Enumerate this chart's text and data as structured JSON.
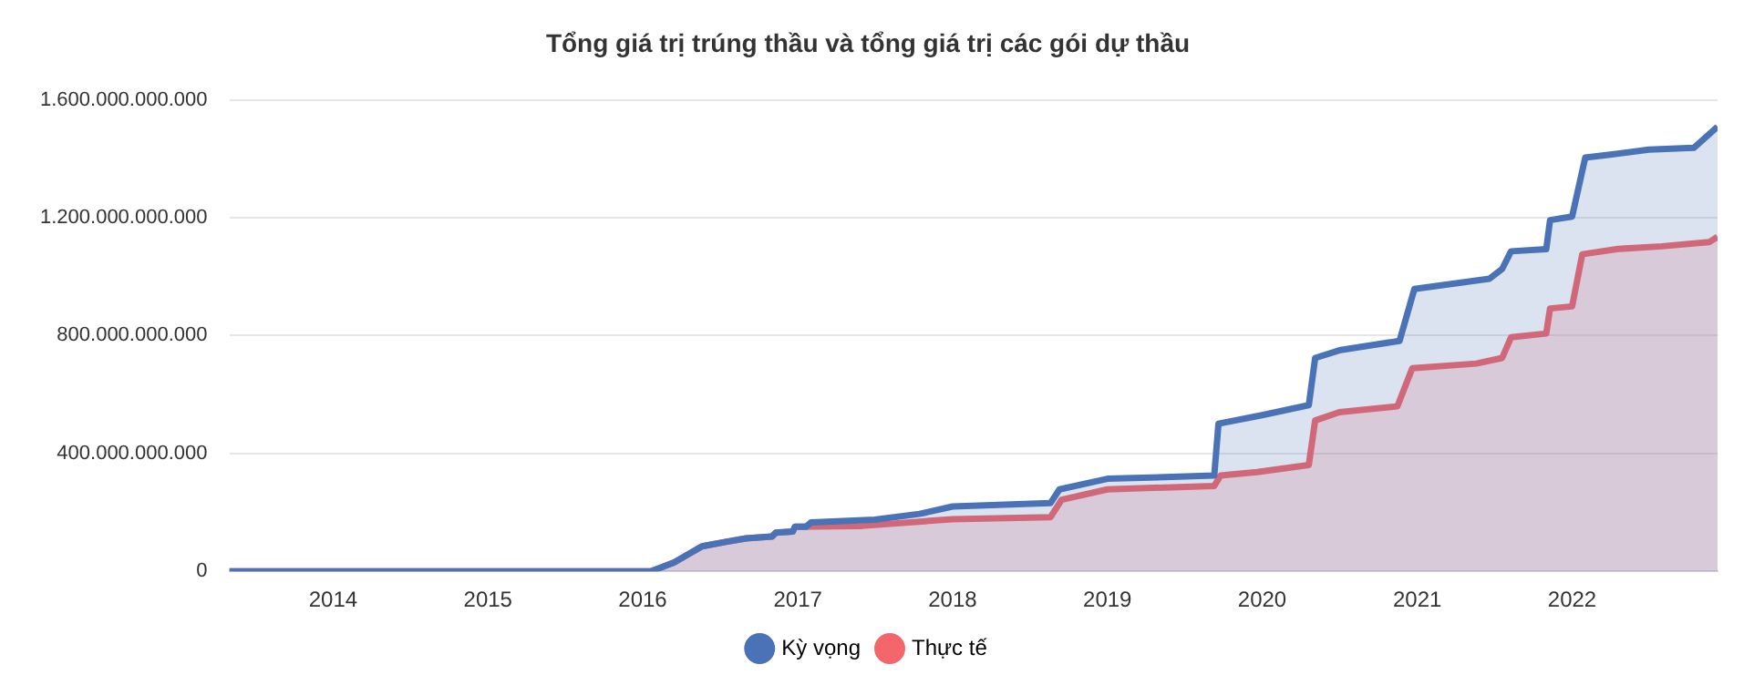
{
  "chart_data": {
    "type": "area",
    "title": "Tổng giá trị trúng thầu và tổng giá trị các gói dự thầu",
    "xlim": [
      "2013-05-01",
      "2022-12-10"
    ],
    "xticks": [
      "2014",
      "2015",
      "2016",
      "2017",
      "2018",
      "2019",
      "2020",
      "2021",
      "2022"
    ],
    "ylim": [
      0,
      1600000000000
    ],
    "yticks": [
      {
        "value": 0,
        "label": "0"
      },
      {
        "value": 400000000000,
        "label": "400.000.000.000"
      },
      {
        "value": 800000000000,
        "label": "800.000.000.000"
      },
      {
        "value": 1200000000000,
        "label": "1.200.000.000.000"
      },
      {
        "value": 1600000000000,
        "label": "1.600.000.000.000"
      }
    ],
    "grid": "y",
    "legend": "bottom",
    "marker": "none",
    "line_style": "solid",
    "series": [
      {
        "name": "Kỳ vọng",
        "color": "#4a72b6",
        "x": [
          "2013-05-01",
          "2016-01-20",
          "2016-03-15",
          "2016-05-20",
          "2016-07-15",
          "2016-09-01",
          "2016-11-01",
          "2016-11-10",
          "2016-12-20",
          "2016-12-25",
          "2017-01-20",
          "2017-02-01",
          "2017-07-01",
          "2017-10-15",
          "2018-01-01",
          "2018-08-20",
          "2018-09-10",
          "2019-01-01",
          "2019-09-10",
          "2019-09-20",
          "2020-01-01",
          "2020-04-20",
          "2020-05-05",
          "2020-07-01",
          "2020-11-20",
          "2020-12-25",
          "2021-06-20",
          "2021-07-20",
          "2021-08-10",
          "2021-11-01",
          "2021-11-10",
          "2022-01-01",
          "2022-02-01",
          "2022-04-01",
          "2022-07-01",
          "2022-10-15",
          "2022-12-10"
        ],
        "values": [
          0,
          0,
          30000000000,
          85000000000,
          100000000000,
          112000000000,
          118000000000,
          131000000000,
          135000000000,
          151000000000,
          151000000000,
          166000000000,
          175000000000,
          195000000000,
          220000000000,
          232000000000,
          278000000000,
          314000000000,
          325000000000,
          501000000000,
          530000000000,
          564000000000,
          724000000000,
          750000000000,
          782000000000,
          958000000000,
          993000000000,
          1026000000000,
          1086000000000,
          1093000000000,
          1192000000000,
          1204000000000,
          1404000000000,
          1414000000000,
          1431000000000,
          1437000000000,
          1509000000000
        ]
      },
      {
        "name": "Thực tế",
        "color": "#f2666c",
        "x": [
          "2013-05-01",
          "2016-01-20",
          "2016-03-15",
          "2016-05-20",
          "2016-07-15",
          "2016-09-01",
          "2016-11-01",
          "2016-11-10",
          "2016-12-20",
          "2016-12-25",
          "2017-06-01",
          "2018-01-01",
          "2018-08-20",
          "2018-09-15",
          "2019-01-01",
          "2019-09-10",
          "2019-09-25",
          "2019-12-20",
          "2020-04-20",
          "2020-05-05",
          "2020-07-01",
          "2020-11-15",
          "2020-12-20",
          "2021-05-20",
          "2021-07-20",
          "2021-08-10",
          "2021-11-01",
          "2021-11-10",
          "2022-01-01",
          "2022-01-25",
          "2022-04-20",
          "2022-08-01",
          "2022-11-20",
          "2022-12-10"
        ],
        "values": [
          0,
          0,
          30000000000,
          85000000000,
          100000000000,
          112000000000,
          118000000000,
          131000000000,
          135000000000,
          151000000000,
          154000000000,
          177000000000,
          184000000000,
          243000000000,
          278000000000,
          290000000000,
          325000000000,
          337000000000,
          361000000000,
          512000000000,
          540000000000,
          560000000000,
          689000000000,
          705000000000,
          724000000000,
          794000000000,
          807000000000,
          892000000000,
          899000000000,
          1076000000000,
          1094000000000,
          1103000000000,
          1117000000000,
          1135000000000
        ]
      }
    ]
  }
}
